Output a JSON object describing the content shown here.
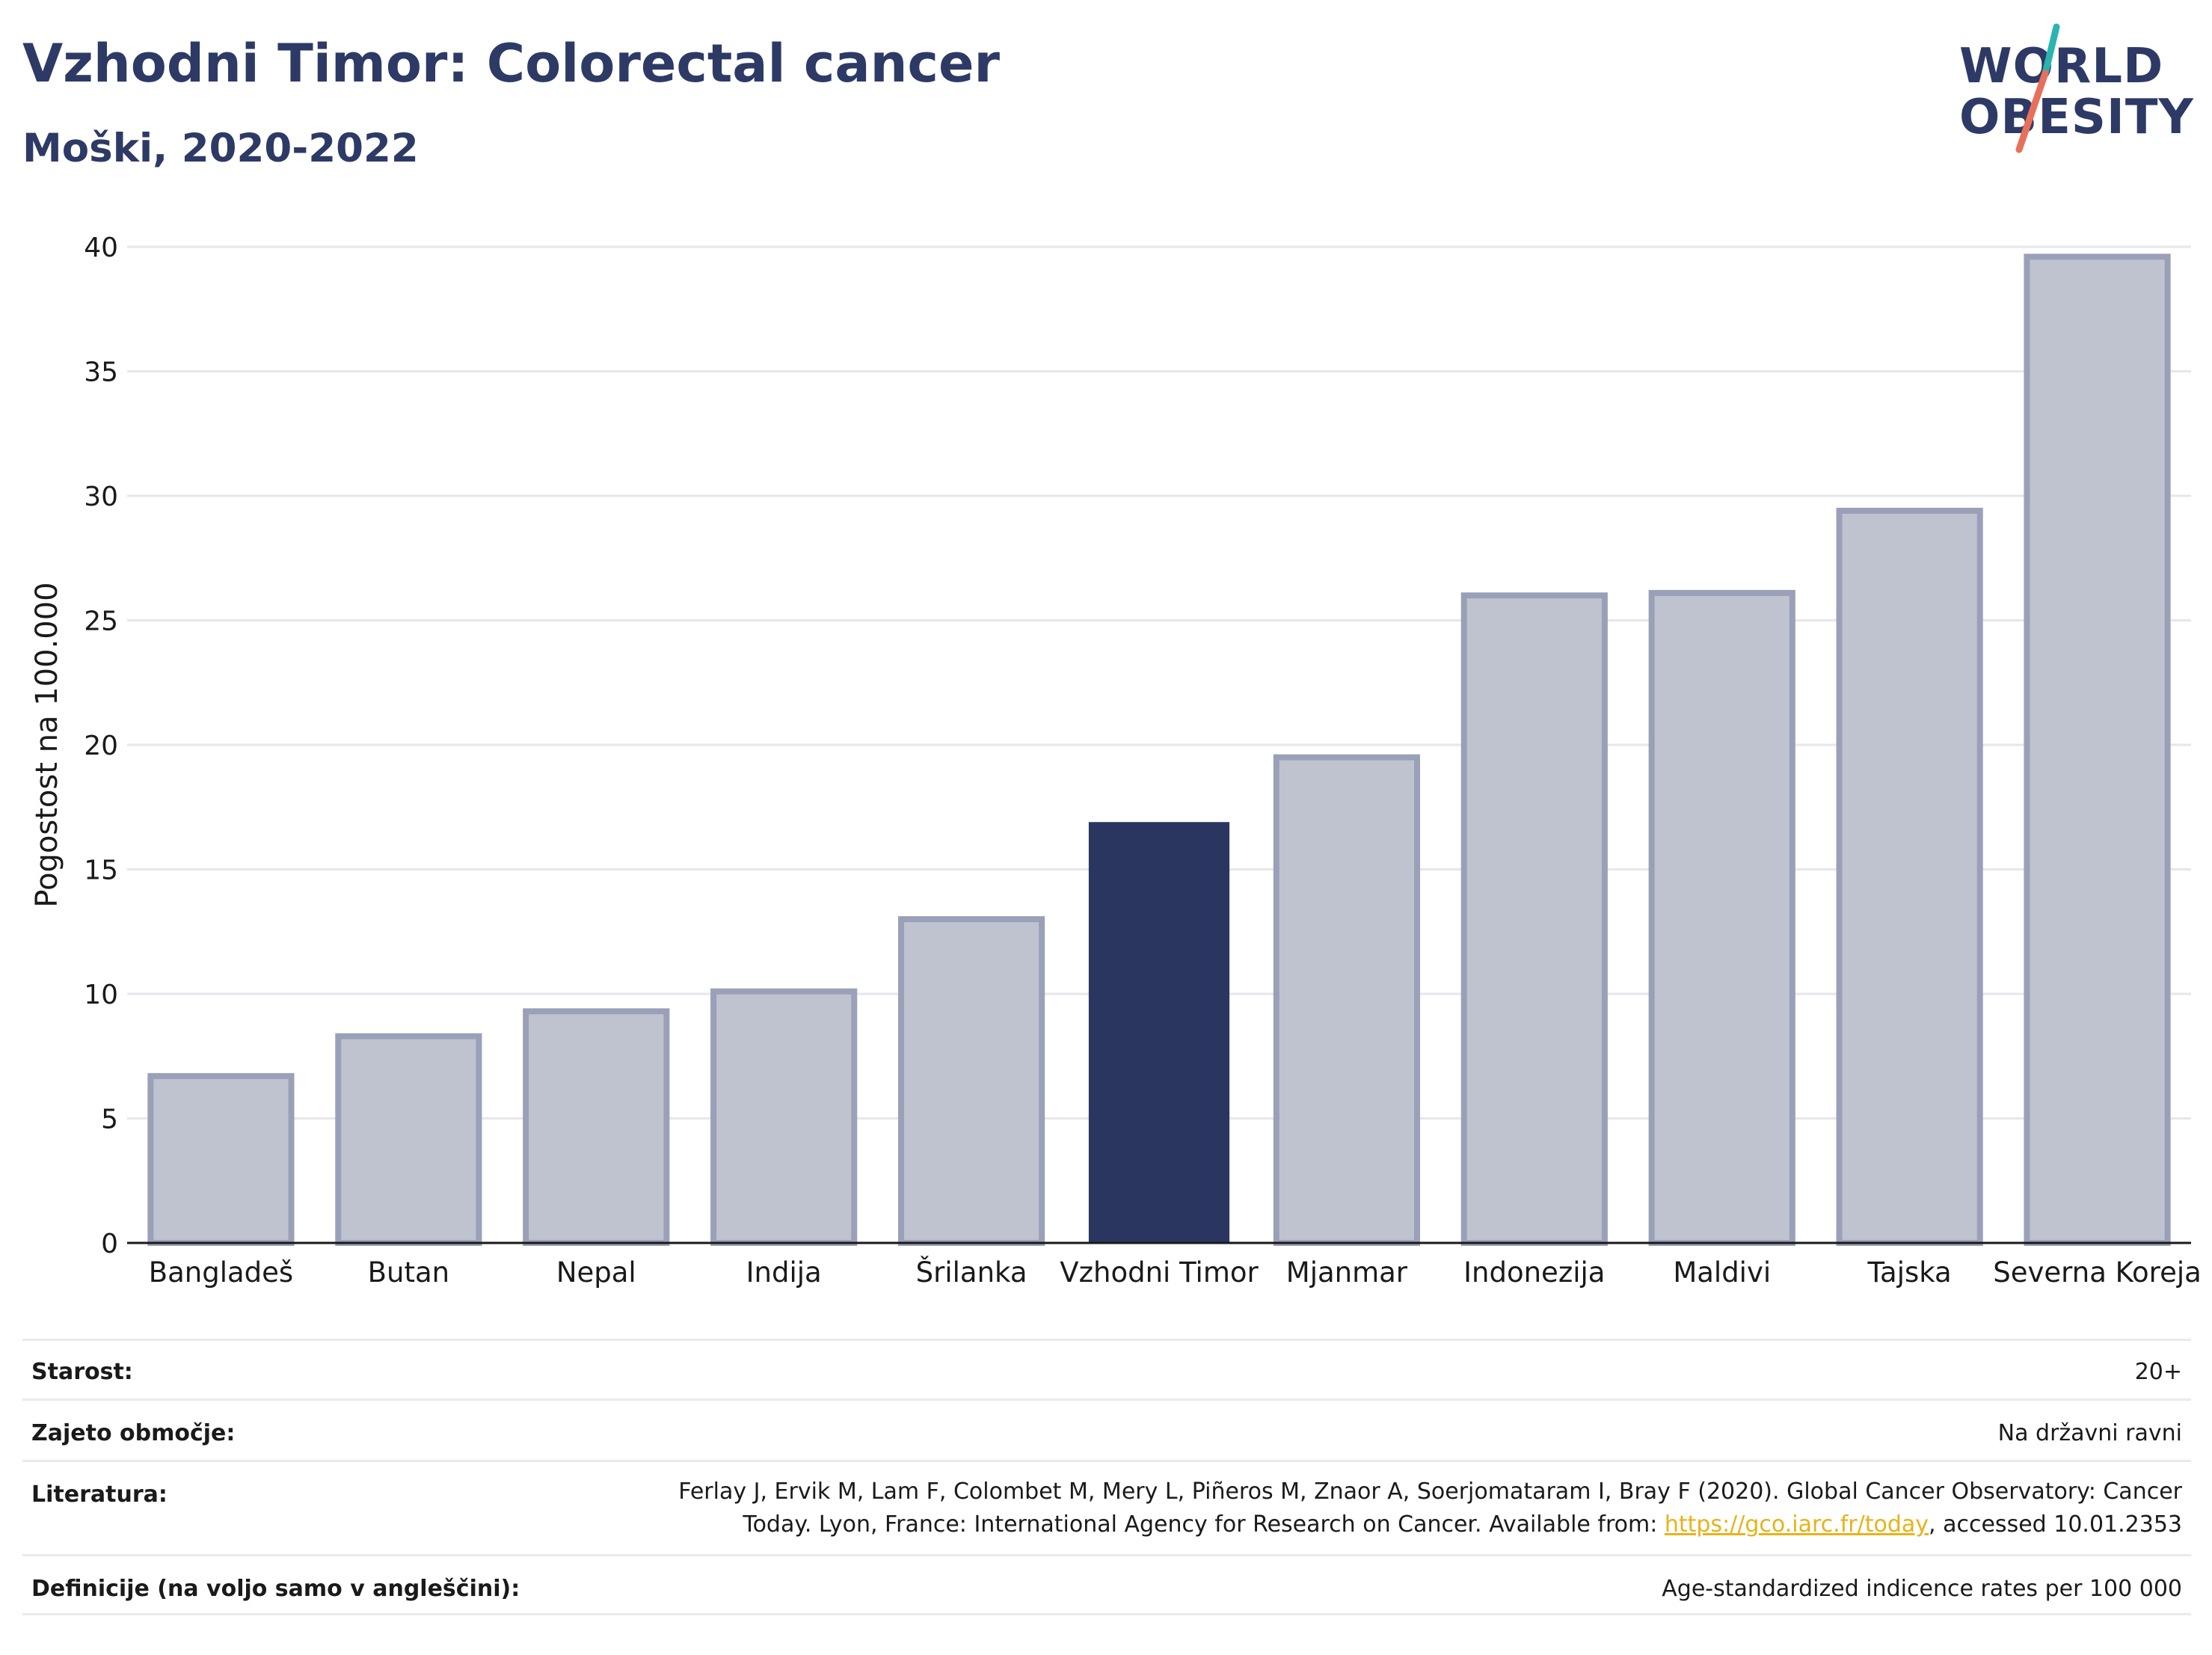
{
  "header": {
    "title": "Vzhodni Timor: Colorectal cancer",
    "subtitle": "Moški, 2020-2022"
  },
  "logo": {
    "line1": "WORLD",
    "line2": "OBESITY",
    "accent_colors": [
      "#2ab5b0",
      "#e8705a"
    ]
  },
  "chart_data": {
    "type": "bar",
    "ylabel": "Pogostost na 100.000",
    "ylim": [
      0,
      40
    ],
    "yticks": [
      0,
      5,
      10,
      15,
      20,
      25,
      30,
      35,
      40
    ],
    "grid": true,
    "categories": [
      "Bangladeš",
      "Butan",
      "Nepal",
      "Indija",
      "Šrilanka",
      "Vzhodni Timor",
      "Mjanmar",
      "Indonezija",
      "Maldivi",
      "Tajska",
      "Severna Koreja"
    ],
    "values": [
      6.7,
      8.3,
      9.3,
      10.1,
      13.0,
      16.9,
      19.5,
      26.0,
      26.1,
      29.4,
      39.6
    ],
    "highlight": "Vzhodni Timor",
    "colors": {
      "highlight": "#2a3660",
      "other_fill": "#bfc3cf",
      "other_stroke": "#9aa0b8",
      "grid": "#e6e7ec"
    }
  },
  "info": {
    "age_label": "Starost:",
    "age_value": "20+",
    "coverage_label": "Zajeto območje:",
    "coverage_value": "Na državni ravni",
    "literature_label": "Literatura:",
    "literature_text_1": "Ferlay J, Ervik M, Lam F, Colombet M, Mery L, Piñeros M, Znaor A, Soerjomataram I, Bray F (2020). Global Cancer Observatory: Cancer Today. Lyon, France: International Agency for Research on Cancer. Available from: ",
    "literature_link": "https://gco.iarc.fr/today",
    "literature_text_2": ", accessed 10.01.2353",
    "definitions_label": "Definicije (na voljo samo v angleščini):",
    "definitions_value": "Age-standardized indicence rates per 100 000"
  }
}
